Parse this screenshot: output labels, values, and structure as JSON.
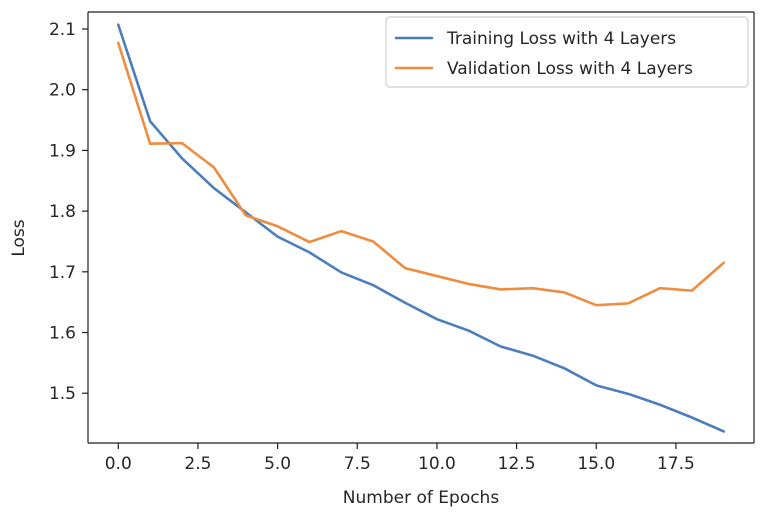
{
  "chart_data": {
    "type": "line",
    "title": "",
    "xlabel": "Number of Epochs",
    "ylabel": "Loss",
    "xlim": [
      -0.95,
      19.95
    ],
    "ylim": [
      1.418,
      2.128
    ],
    "xticks": [
      0.0,
      2.5,
      5.0,
      7.5,
      10.0,
      12.5,
      15.0,
      17.5
    ],
    "xtick_labels": [
      "0.0",
      "2.5",
      "5.0",
      "7.5",
      "10.0",
      "12.5",
      "15.0",
      "17.5"
    ],
    "yticks": [
      1.5,
      1.6,
      1.7,
      1.8,
      1.9,
      2.0,
      2.1
    ],
    "ytick_labels": [
      "1.5",
      "1.6",
      "1.7",
      "1.8",
      "1.9",
      "2.0",
      "2.1"
    ],
    "grid": false,
    "legend_position": "top-right",
    "x": [
      0,
      1,
      2,
      3,
      4,
      5,
      6,
      7,
      8,
      9,
      10,
      11,
      12,
      13,
      14,
      15,
      16,
      17,
      18,
      19
    ],
    "series": [
      {
        "name": "Training Loss with 4 Layers",
        "color": "#4c7ebc",
        "values": [
          2.107,
          1.948,
          1.887,
          1.838,
          1.798,
          1.758,
          1.732,
          1.699,
          1.678,
          1.649,
          1.622,
          1.603,
          1.577,
          1.562,
          1.541,
          1.513,
          1.499,
          1.481,
          1.46,
          1.437
        ]
      },
      {
        "name": "Validation Loss with 4 Layers",
        "color": "#ee8c3f",
        "values": [
          2.077,
          1.911,
          1.912,
          1.872,
          1.793,
          1.775,
          1.749,
          1.767,
          1.75,
          1.706,
          1.693,
          1.68,
          1.671,
          1.673,
          1.666,
          1.645,
          1.648,
          1.673,
          1.669,
          1.715
        ]
      }
    ]
  }
}
